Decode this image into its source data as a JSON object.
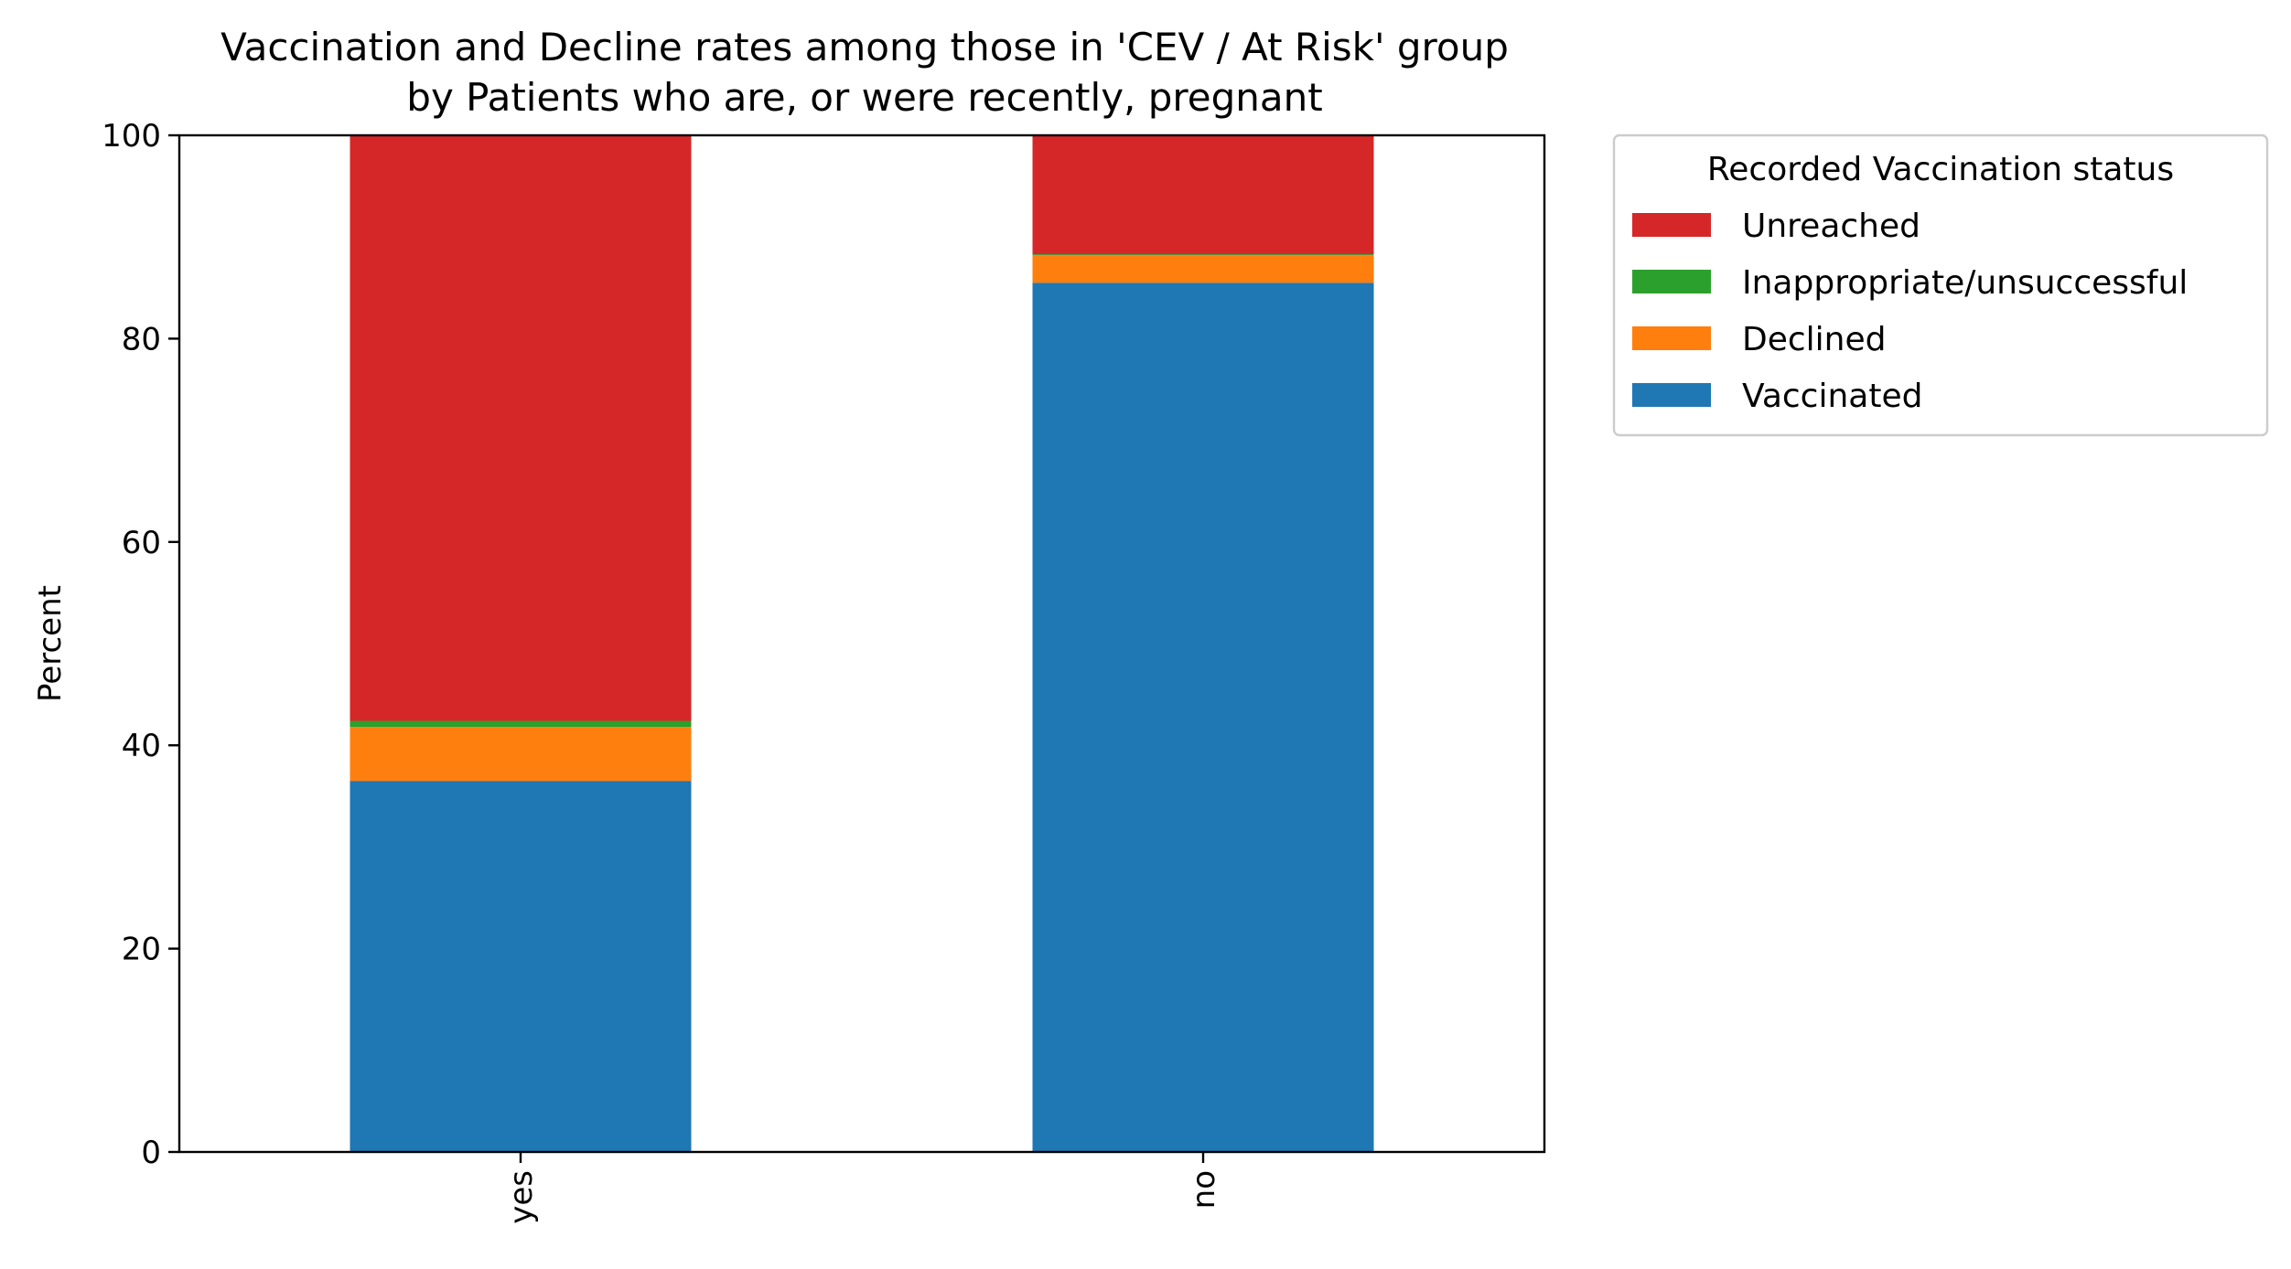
{
  "chart_data": {
    "type": "bar",
    "stacked": true,
    "title": "Vaccination and Decline rates among those in 'CEV / At Risk' group",
    "subtitle": "by Patients who are, or were recently, pregnant",
    "xlabel": "",
    "ylabel": "Percent",
    "ylim": [
      0,
      100
    ],
    "yticks": [
      "0",
      "20",
      "40",
      "60",
      "80",
      "100"
    ],
    "categories": [
      "yes",
      "no"
    ],
    "series": [
      {
        "name": "Vaccinated",
        "color": "#1f77b4",
        "values": [
          36.5,
          85.5
        ]
      },
      {
        "name": "Declined",
        "color": "#ff7f0e",
        "values": [
          5.3,
          2.7
        ]
      },
      {
        "name": "Inappropriate/unsuccessful",
        "color": "#2ca02c",
        "values": [
          0.6,
          0.1
        ]
      },
      {
        "name": "Unreached",
        "color": "#d62728",
        "values": [
          57.6,
          11.7
        ]
      }
    ],
    "legend": {
      "title": "Recorded Vaccination status",
      "placement": "outside-right-top",
      "order": [
        "Unreached",
        "Inappropriate/unsuccessful",
        "Declined",
        "Vaccinated"
      ]
    },
    "grid": false
  }
}
